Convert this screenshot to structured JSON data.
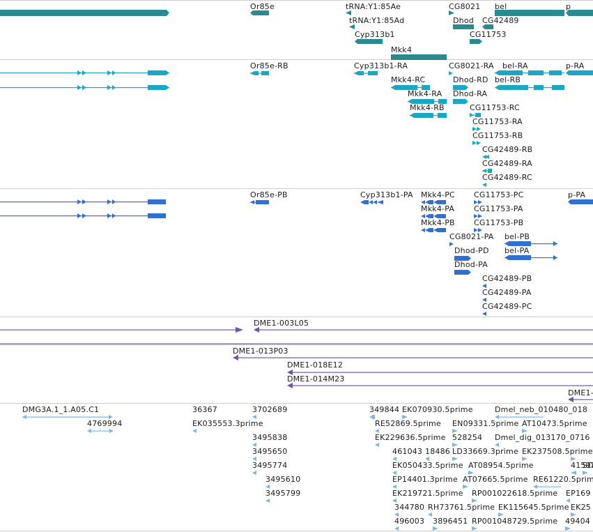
{
  "colors": {
    "gene": "#2a8a91",
    "transcript": "#1ba6c4",
    "protein": "#3270d0",
    "clone": "#6f55a8",
    "est": "#7db7df",
    "divider": "#c9ccd0",
    "text": "#1a1a1a"
  },
  "tracks": [
    {
      "name": "genes",
      "color_key": "gene",
      "labels": [
        "Or85e",
        "tRNA:Y1:85Ae",
        "tRNA:Y1:85Ad",
        "Cyp313b1",
        "Mkk4",
        "CG8021",
        "Dhod",
        "CG11753",
        "bel",
        "CG42489",
        "p"
      ]
    },
    {
      "name": "transcripts",
      "color_key": "transcript",
      "labels": [
        "Or85e-RB",
        "Cyp313b1-RA",
        "CG8021-RA",
        "bel-RA",
        "p-RA",
        "Mkk4-RC",
        "Dhod-RD",
        "bel-RB",
        "Mkk4-RA",
        "Dhod-RA",
        "Mkk4-RB",
        "CG11753-RC",
        "CG11753-RA",
        "CG11753-RB",
        "CG42489-RB",
        "CG42489-RA",
        "CG42489-RC"
      ]
    },
    {
      "name": "proteins",
      "color_key": "protein",
      "labels": [
        "Or85e-PB",
        "Cyp313b1-PA",
        "Mkk4-PC",
        "CG11753-PC",
        "p-PA",
        "Mkk4-PA",
        "CG11753-PA",
        "Mkk4-PB",
        "CG11753-PB",
        "CG8021-PA",
        "bel-PB",
        "Dhod-PD",
        "bel-PA",
        "Dhod-PA",
        "CG42489-PB",
        "CG42489-PA",
        "CG42489-PC"
      ]
    },
    {
      "name": "clones-a",
      "color_key": "clone",
      "labels": [
        "DME1-003L05"
      ]
    },
    {
      "name": "clones-b",
      "color_key": "clone",
      "labels": [
        "DME1-013P03",
        "DME1-018E12",
        "DME1-014M23",
        "DME1-"
      ]
    },
    {
      "name": "ests",
      "color_key": "est",
      "labels": [
        "DMG3A.1_1.A05.C1",
        "36367",
        "3702689",
        "349844",
        "EK070930.5prime",
        "Dmel_neb_010480_018",
        "4769994",
        "EK035553.3prime",
        "RE52869.5prime",
        "EN09331.5prime",
        "AT10473.5prime",
        "EK229636.5prime",
        "528254",
        "Dmel_dig_013170_0716",
        "3495838",
        "461043",
        "18486",
        "LD33669.3prime",
        "EK237508.5prime",
        "3495650",
        "EK050433.5prime",
        "AT08954.5prime",
        "415973",
        "SD",
        "3495774",
        "EP14401.3prime",
        "AT07665.5prime",
        "RE61220.5prime",
        "3495610",
        "EK219721.5prime",
        "RP001022618.5prime",
        "EP169",
        "3495799",
        "344780",
        "RH73761.5prime",
        "EK115645.5prime",
        "EK25",
        "496003",
        "3896451",
        "RP001048729.5prime",
        "49404"
      ]
    }
  ]
}
